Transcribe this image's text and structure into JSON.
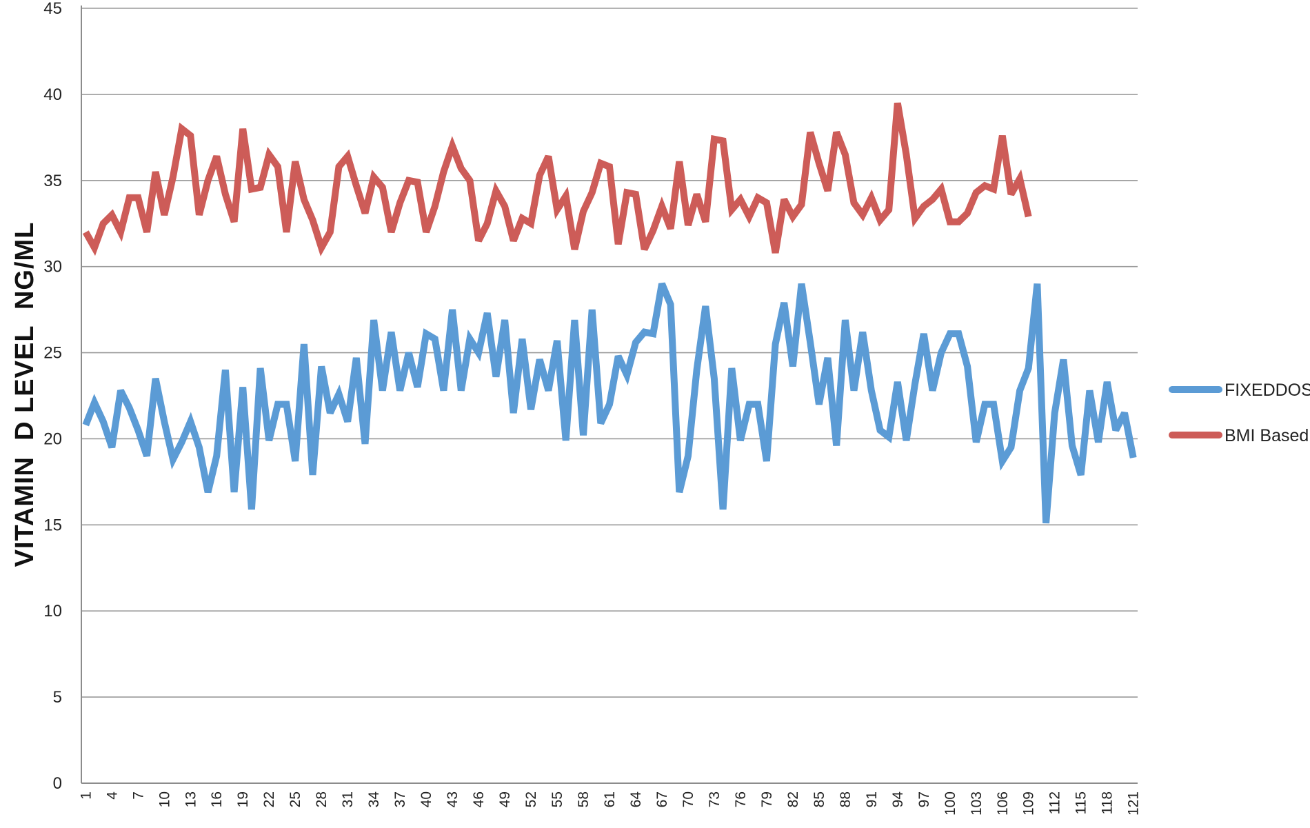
{
  "chart_data": {
    "type": "line",
    "title": "",
    "xlabel": "",
    "ylabel": "VITAMIN  D LEVEL  NG/ML",
    "ylim": [
      0,
      45
    ],
    "yticks": [
      0,
      5,
      10,
      15,
      20,
      25,
      30,
      35,
      40,
      45
    ],
    "xrange": [
      1,
      121
    ],
    "xtick_step": 3,
    "grid": true,
    "legend_position": "right",
    "series": [
      {
        "name": "FIXEDDOSE",
        "color": "#5b9bd5",
        "x_start": 1,
        "values": [
          20.8,
          22.1,
          21,
          19.5,
          22.8,
          21.8,
          20.5,
          19,
          23.5,
          21,
          18.8,
          19.8,
          21,
          19.5,
          16.9,
          19,
          24,
          16.9,
          23,
          15.9,
          24.1,
          19.9,
          22,
          22,
          18.7,
          25.5,
          17.9,
          24.2,
          21.5,
          22.6,
          21,
          24.7,
          19.7,
          26.9,
          22.8,
          26.2,
          22.8,
          25,
          23,
          26.1,
          25.8,
          22.8,
          27.5,
          22.8,
          25.8,
          25,
          27.3,
          23.6,
          26.9,
          21.5,
          25.8,
          21.7,
          24.6,
          22.8,
          25.7,
          19.9,
          26.9,
          20.2,
          27.5,
          20.9,
          22,
          24.8,
          23.7,
          25.6,
          26.2,
          26.1,
          29,
          27.8,
          16.9,
          19,
          24,
          27.7,
          23.5,
          15.9,
          24.1,
          19.9,
          22,
          22,
          18.7,
          25.5,
          27.9,
          24.2,
          29,
          25.6,
          22,
          24.7,
          19.6,
          26.9,
          22.8,
          26.2,
          22.8,
          20.5,
          20.1,
          23.3,
          19.9,
          23.2,
          26.1,
          22.8,
          25,
          26.1,
          26.1,
          24.2,
          19.8,
          22,
          22,
          18.7,
          19.5,
          22.8,
          24.1,
          29,
          15.1,
          21.5,
          24.6,
          19.6,
          17.9,
          22.8,
          19.8,
          23.3,
          20.5,
          21.5,
          18.9
        ]
      },
      {
        "name": "BMI Based",
        "color": "#cd5c58",
        "x_start": 1,
        "values": [
          32,
          31.1,
          32.5,
          33,
          32,
          34,
          34,
          32,
          35.5,
          33,
          35.2,
          38,
          37.6,
          33,
          35,
          36.4,
          34.2,
          32.6,
          38,
          34.5,
          34.6,
          36.5,
          35.8,
          32,
          36.1,
          33.9,
          32.7,
          31.1,
          32,
          35.8,
          36.4,
          34.7,
          33.1,
          35.2,
          34.6,
          32,
          33.7,
          35,
          34.9,
          32,
          33.5,
          35.5,
          37,
          35.7,
          35,
          31.5,
          32.5,
          34.4,
          33.5,
          31.5,
          32.8,
          32.5,
          35.3,
          36.4,
          33.3,
          34.1,
          31,
          33.2,
          34.3,
          36,
          35.8,
          31.3,
          34.3,
          34.2,
          31,
          32.1,
          33.5,
          32.2,
          36.1,
          32.4,
          34.2,
          32.6,
          37.4,
          37.3,
          33.3,
          33.9,
          32.9,
          34,
          33.7,
          30.8,
          33.9,
          32.9,
          33.6,
          37.8,
          36,
          34.4,
          37.8,
          36.5,
          33.7,
          33,
          34,
          32.7,
          33.3,
          39.5,
          36.5,
          32.8,
          33.5,
          33.9,
          34.5,
          32.6,
          32.6,
          33.1,
          34.3,
          34.7,
          34.5,
          37.6,
          34.2,
          35.1,
          32.9
        ]
      }
    ]
  }
}
